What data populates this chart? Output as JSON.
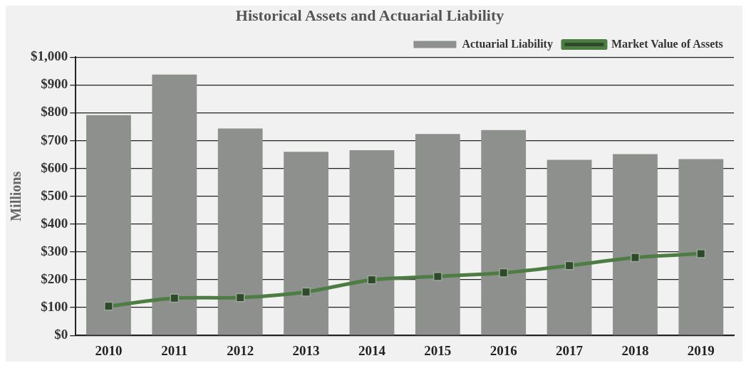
{
  "chart_data": {
    "type": "bar",
    "title": "Historical Assets and Actuarial Liability",
    "ylabel": "Millions",
    "categories": [
      "2010",
      "2011",
      "2012",
      "2013",
      "2014",
      "2015",
      "2016",
      "2017",
      "2018",
      "2019"
    ],
    "series": [
      {
        "name": "Actuarial Liability",
        "color": "#8e908e",
        "values": [
          792,
          938,
          744,
          660,
          666,
          724,
          738,
          631,
          652,
          634
        ]
      },
      {
        "name": "Market Value of Assets",
        "type": "line",
        "color": "#4e7d44",
        "marker": "square",
        "values": [
          105,
          134,
          136,
          156,
          200,
          212,
          225,
          251,
          280,
          294
        ]
      }
    ],
    "ylim": [
      0,
      1000
    ],
    "yticks": [
      {
        "value": 0,
        "label": "$0"
      },
      {
        "value": 100,
        "label": "$100"
      },
      {
        "value": 200,
        "label": "$200"
      },
      {
        "value": 300,
        "label": "$300"
      },
      {
        "value": 400,
        "label": "$400"
      },
      {
        "value": 500,
        "label": "$500"
      },
      {
        "value": 600,
        "label": "$600"
      },
      {
        "value": 700,
        "label": "$700"
      },
      {
        "value": 800,
        "label": "$800"
      },
      {
        "value": 900,
        "label": "$900"
      },
      {
        "value": 1000,
        "label": "$1,000"
      }
    ],
    "grid": "y",
    "legend": "top"
  }
}
